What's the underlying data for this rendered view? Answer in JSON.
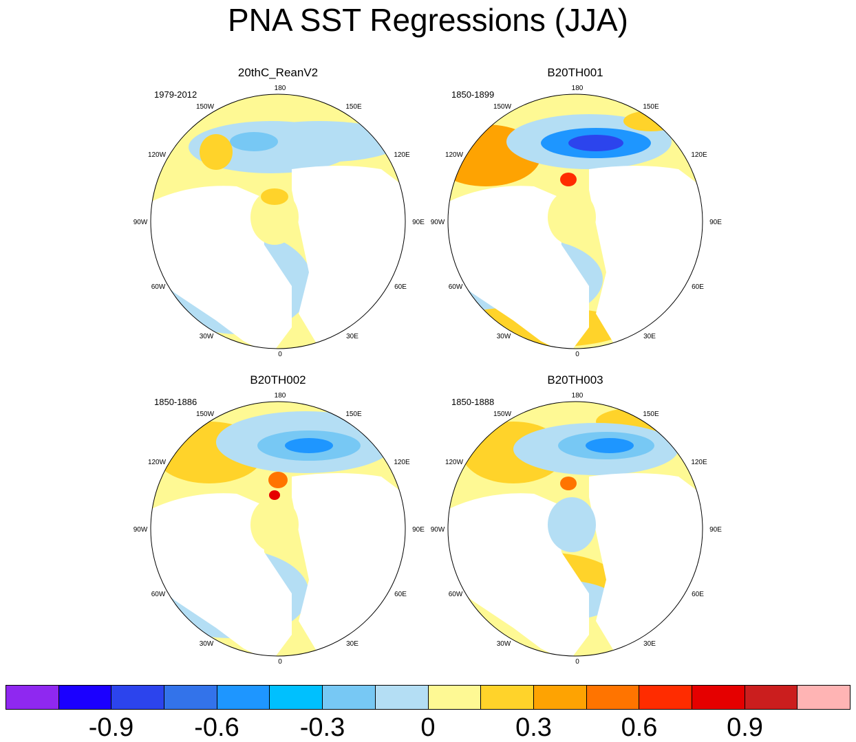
{
  "title": "PNA SST Regressions (JJA)",
  "lon_labels": [
    "180",
    "150E",
    "120E",
    "90E",
    "60E",
    "30E",
    "0",
    "30W",
    "60W",
    "90W",
    "120W",
    "150W"
  ],
  "panels": [
    {
      "title": "20thC_ReanV2",
      "period": "1979-2012"
    },
    {
      "title": "B20TH001",
      "period": "1850-1899"
    },
    {
      "title": "B20TH002",
      "period": "1850-1886"
    },
    {
      "title": "B20TH003",
      "period": "1850-1888"
    }
  ],
  "colorbar": {
    "colors": [
      "#8f28f0",
      "#1b00ff",
      "#2c44ed",
      "#3373ea",
      "#1e96ff",
      "#00c0fe",
      "#77c8f4",
      "#b4def4",
      "#fef994",
      "#ffd32a",
      "#fea302",
      "#ff7400",
      "#ff2c00",
      "#e50000",
      "#cb1e1e",
      "#ffb4b4"
    ],
    "tick_labels": [
      "-0.9",
      "-0.6",
      "-0.3",
      "0",
      "0.3",
      "0.6",
      "0.9"
    ]
  }
}
